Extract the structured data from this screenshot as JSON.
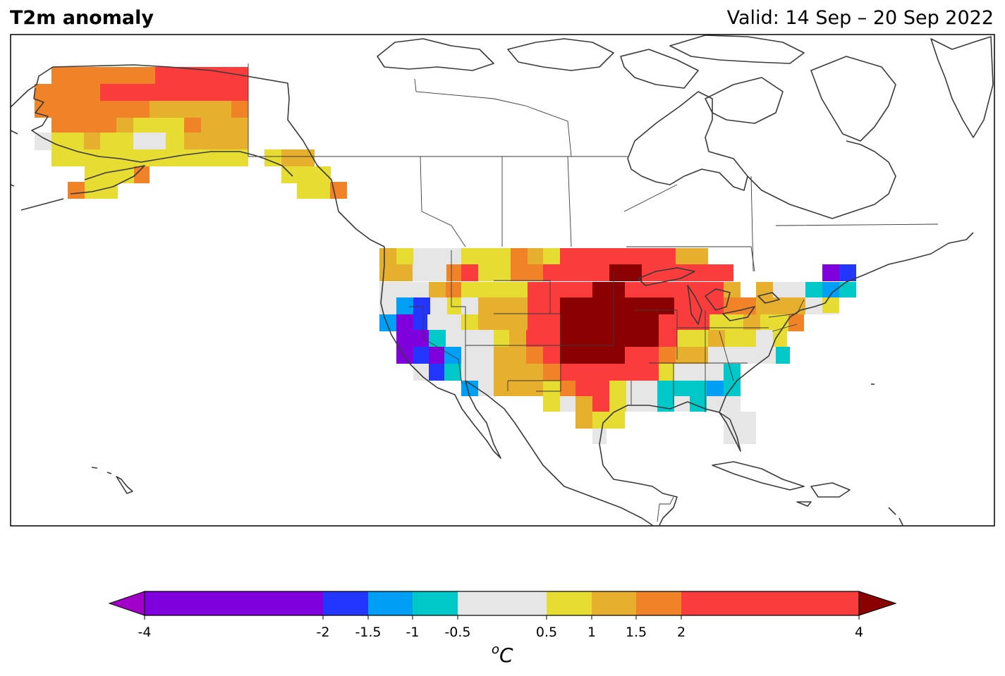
{
  "map": {
    "title": "T2m anomaly",
    "valid_label": "Valid: 14 Sep – 20 Sep 2022"
  },
  "colorbar": {
    "unit_sup": "o",
    "unit": "C",
    "bins": [
      {
        "from": -4,
        "to": -2,
        "color": "#7f00dc"
      },
      {
        "from": -2,
        "to": -1.5,
        "color": "#2236ff"
      },
      {
        "from": -1.5,
        "to": -1,
        "color": "#009ff6"
      },
      {
        "from": -1,
        "to": -0.5,
        "color": "#00c8c8"
      },
      {
        "from": -0.5,
        "to": 0.5,
        "color": "#e6e6e6"
      },
      {
        "from": 0.5,
        "to": 1,
        "color": "#e6dc32"
      },
      {
        "from": 1,
        "to": 1.5,
        "color": "#e6af2d"
      },
      {
        "from": 1.5,
        "to": 2,
        "color": "#f08228"
      },
      {
        "from": 2,
        "to": 4,
        "color": "#fa3c3c"
      }
    ],
    "under_color": "#a000c8",
    "over_color": "#8b0000",
    "ticks": [
      "-4",
      "-2",
      "-1.5",
      "-1",
      "-0.5",
      "0.5",
      "1",
      "1.5",
      "2",
      "4"
    ]
  }
}
